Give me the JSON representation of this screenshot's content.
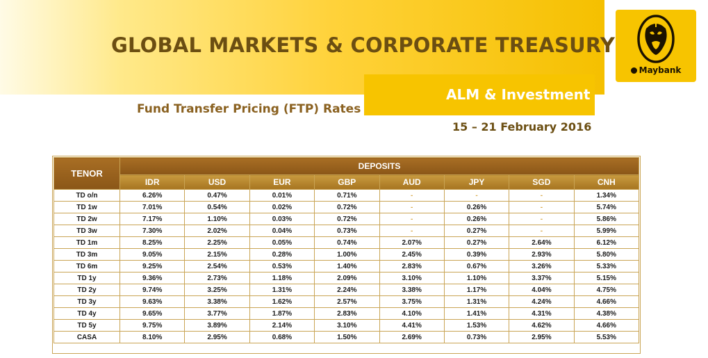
{
  "header": {
    "title": "GLOBAL MARKETS & CORPORATE TREASURY",
    "alm": "ALM & Investment",
    "ftp": "Fund Transfer Pricing (FTP) Rates",
    "date_range": "15 – 21 February 2016"
  },
  "logo": {
    "text": "Maybank",
    "icon": "tiger-head-icon"
  },
  "table": {
    "tenor_header": "TENOR",
    "group_header": "DEPOSITS",
    "currencies": [
      "IDR",
      "USD",
      "EUR",
      "GBP",
      "AUD",
      "JPY",
      "SGD",
      "CNH"
    ],
    "rows": [
      {
        "tenor": "TD o/n",
        "values": [
          "6.26%",
          "0.47%",
          "0.01%",
          "0.71%",
          "-",
          "-",
          "-",
          "1.34%"
        ]
      },
      {
        "tenor": "TD 1w",
        "values": [
          "7.01%",
          "0.54%",
          "0.02%",
          "0.72%",
          "-",
          "0.26%",
          "-",
          "5.74%"
        ]
      },
      {
        "tenor": "TD 2w",
        "values": [
          "7.17%",
          "1.10%",
          "0.03%",
          "0.72%",
          "-",
          "0.26%",
          "-",
          "5.86%"
        ]
      },
      {
        "tenor": "TD 3w",
        "values": [
          "7.30%",
          "2.02%",
          "0.04%",
          "0.73%",
          "-",
          "0.27%",
          "-",
          "5.99%"
        ]
      },
      {
        "tenor": "TD 1m",
        "values": [
          "8.25%",
          "2.25%",
          "0.05%",
          "0.74%",
          "2.07%",
          "0.27%",
          "2.64%",
          "6.12%"
        ]
      },
      {
        "tenor": "TD 3m",
        "values": [
          "9.05%",
          "2.15%",
          "0.28%",
          "1.00%",
          "2.45%",
          "0.39%",
          "2.93%",
          "5.80%"
        ]
      },
      {
        "tenor": "TD 6m",
        "values": [
          "9.25%",
          "2.54%",
          "0.53%",
          "1.40%",
          "2.83%",
          "0.67%",
          "3.26%",
          "5.33%"
        ]
      },
      {
        "tenor": "TD 1y",
        "values": [
          "9.36%",
          "2.73%",
          "1.18%",
          "2.09%",
          "3.10%",
          "1.10%",
          "3.37%",
          "5.15%"
        ]
      },
      {
        "tenor": "TD 2y",
        "values": [
          "9.74%",
          "3.25%",
          "1.31%",
          "2.24%",
          "3.38%",
          "1.17%",
          "4.04%",
          "4.75%"
        ]
      },
      {
        "tenor": "TD 3y",
        "values": [
          "9.63%",
          "3.38%",
          "1.62%",
          "2.57%",
          "3.75%",
          "1.31%",
          "4.24%",
          "4.66%"
        ]
      },
      {
        "tenor": "TD 4y",
        "values": [
          "9.65%",
          "3.77%",
          "1.87%",
          "2.83%",
          "4.10%",
          "1.41%",
          "4.31%",
          "4.38%"
        ]
      },
      {
        "tenor": "TD 5y",
        "values": [
          "9.75%",
          "3.89%",
          "2.14%",
          "3.10%",
          "4.41%",
          "1.53%",
          "4.62%",
          "4.66%"
        ]
      },
      {
        "tenor": "CASA",
        "values": [
          "8.10%",
          "2.95%",
          "0.68%",
          "1.50%",
          "2.69%",
          "0.73%",
          "2.95%",
          "5.53%"
        ]
      }
    ]
  },
  "colors": {
    "gold": "#f7c400",
    "brown_header": "#8a5617",
    "title_brown": "#6b4e12"
  }
}
